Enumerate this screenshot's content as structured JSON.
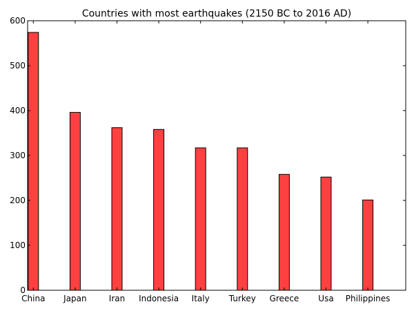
{
  "chart_data": {
    "type": "bar",
    "title": "Countries with most earthquakes (2150 BC to 2016 AD)",
    "xlabel": "",
    "ylabel": "",
    "categories": [
      "China",
      "Japan",
      "Iran",
      "Indonesia",
      "Italy",
      "Turkey",
      "Greece",
      "Usa",
      "Philippines"
    ],
    "values": [
      574,
      396,
      362,
      358,
      317,
      317,
      258,
      252,
      201
    ],
    "ylim": [
      0,
      600
    ],
    "yticks": [
      0,
      100,
      200,
      300,
      400,
      500,
      600
    ],
    "grid": false,
    "legend": "none",
    "bar_color": "#ff4040",
    "bar_edge_color": "#000000"
  }
}
